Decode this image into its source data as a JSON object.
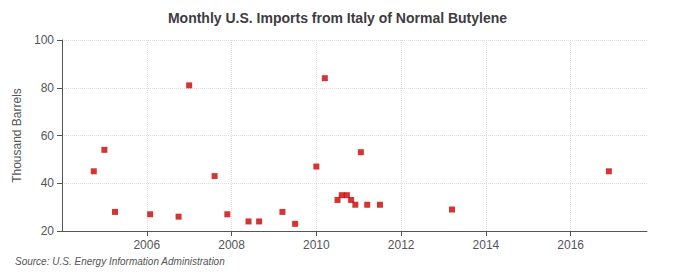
{
  "chart_data": {
    "type": "scatter",
    "title": "Monthly U.S. Imports from Italy of Normal Butylene",
    "ylabel": "Thousand Barrels",
    "annotations": [
      "Source: U.S. Energy Information Administration"
    ],
    "x": [
      2004.75,
      2005.0,
      2005.25,
      2006.08,
      2007.0,
      2006.75,
      2007.6,
      2007.9,
      2008.4,
      2008.65,
      2009.2,
      2009.5,
      2010.0,
      2010.2,
      2010.5,
      2010.6,
      2010.72,
      2010.82,
      2010.92,
      2011.05,
      2011.2,
      2011.5,
      2013.2,
      2016.9
    ],
    "values": [
      45,
      54,
      28,
      27,
      81,
      26,
      43,
      27,
      24,
      24,
      28,
      23,
      47,
      84,
      33,
      35,
      35,
      33,
      31,
      53,
      31,
      31,
      29,
      45
    ],
    "color": "#cc0000",
    "marker": "square",
    "xlim": [
      2004.0,
      2017.8
    ],
    "xticks": [
      2006,
      2008,
      2010,
      2012,
      2014,
      2016
    ],
    "ylim": [
      20,
      100
    ],
    "yticks": [
      20,
      40,
      60,
      80,
      100
    ],
    "grid": true
  }
}
